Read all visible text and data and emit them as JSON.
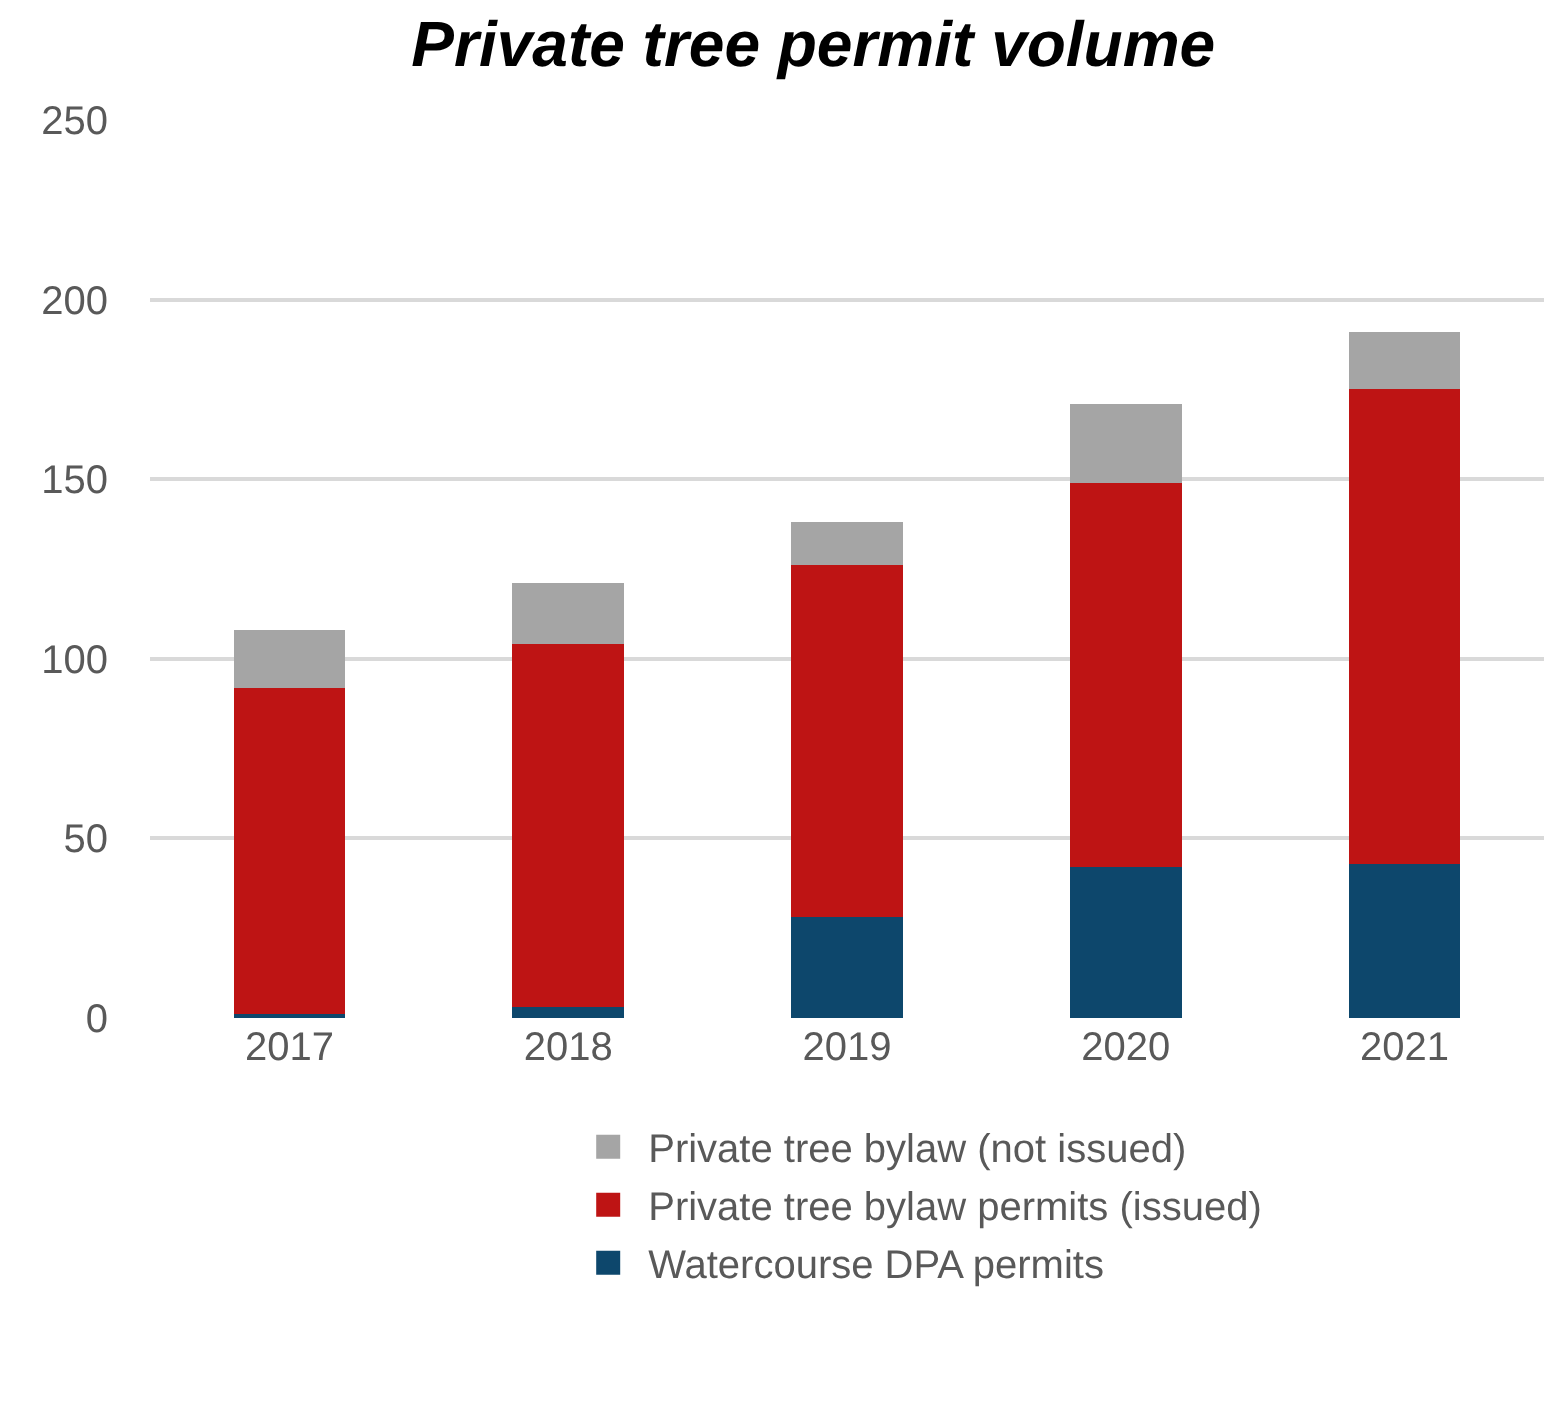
{
  "chart_data": {
    "type": "bar",
    "title": "Private tree permit volume",
    "stacked": true,
    "categories": [
      "2017",
      "2018",
      "2019",
      "2020",
      "2021"
    ],
    "series": [
      {
        "name": "Watercourse DPA permits",
        "color": "#0d476c",
        "values": [
          1,
          3,
          28,
          42,
          43
        ]
      },
      {
        "name": "Private tree bylaw permits (issued)",
        "color": "#be1414",
        "values": [
          91,
          101,
          98,
          107,
          132
        ]
      },
      {
        "name": "Private tree bylaw (not issued)",
        "color": "#a5a5a5",
        "values": [
          16,
          17,
          12,
          22,
          16
        ]
      }
    ],
    "ylim": [
      0,
      250
    ],
    "yticks": [
      0,
      50,
      100,
      150,
      200,
      250
    ],
    "grid": "y",
    "legend": "bottom"
  }
}
